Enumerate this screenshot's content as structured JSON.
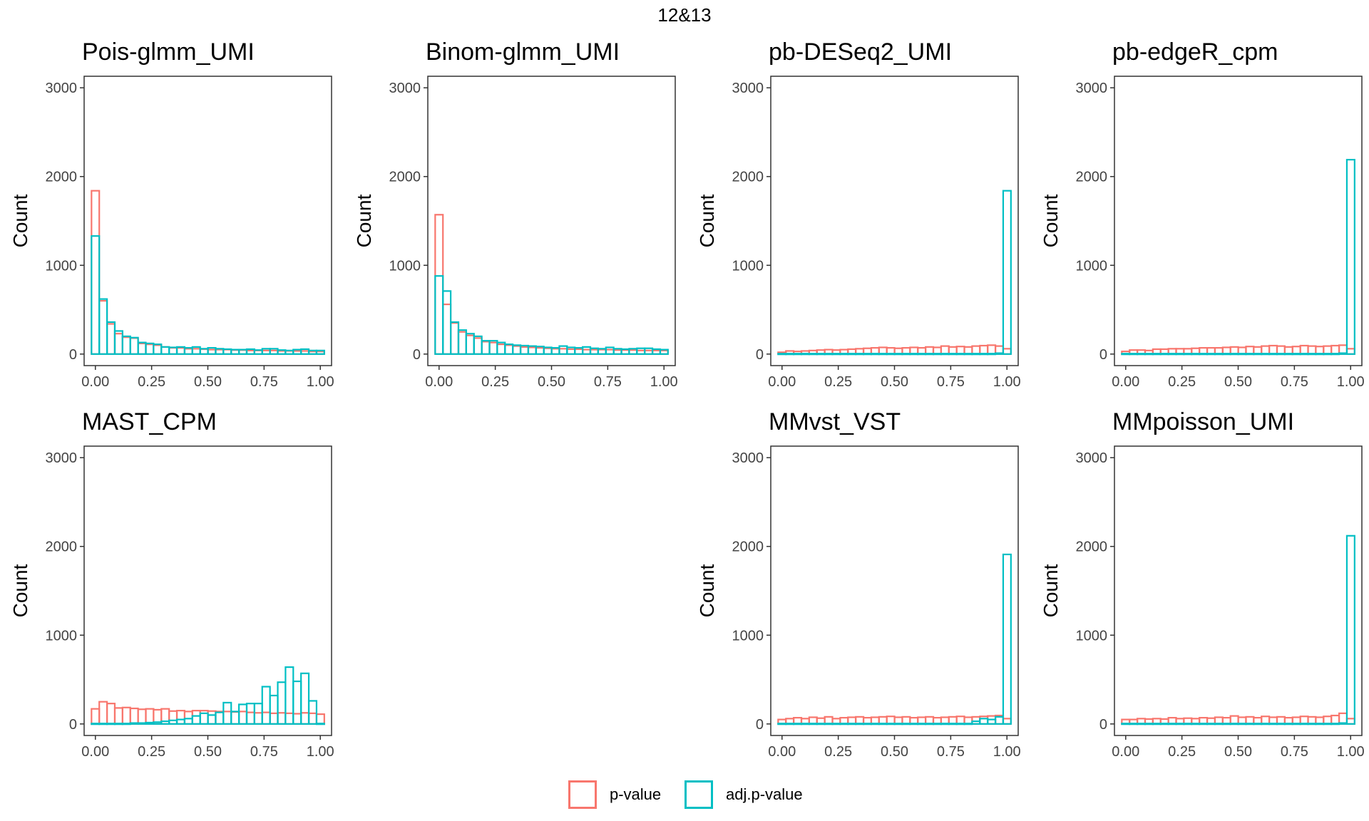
{
  "title": "12&13",
  "colors": {
    "p": "#F8766D",
    "adj": "#00BFC4",
    "ref": "#bbbbbb"
  },
  "legend": [
    {
      "label": "p-value",
      "color": "#F8766D"
    },
    {
      "label": "adj.p-value",
      "color": "#00BFC4"
    }
  ],
  "chart_data": [
    {
      "type": "bar",
      "title": "Pois-glmm_UMI",
      "ylabel": "Count",
      "xlim": [
        -0.05,
        1.05
      ],
      "ylim": [
        -130,
        3130
      ],
      "xticks": [
        "0.00",
        "0.25",
        "0.50",
        "0.75",
        "1.00"
      ],
      "yticks": [
        "0",
        "1000",
        "2000",
        "3000"
      ],
      "bin_width": 0.0345,
      "series": [
        {
          "name": "p-value",
          "values": [
            1840,
            600,
            340,
            230,
            190,
            180,
            120,
            110,
            100,
            80,
            70,
            70,
            60,
            60,
            55,
            50,
            50,
            50,
            45,
            45,
            40,
            40,
            40,
            40,
            35,
            35,
            35,
            35,
            30,
            30
          ]
        },
        {
          "name": "adj.p-value",
          "values": [
            1330,
            620,
            360,
            260,
            200,
            185,
            130,
            120,
            110,
            80,
            75,
            80,
            70,
            80,
            60,
            70,
            60,
            55,
            50,
            50,
            55,
            45,
            60,
            60,
            45,
            40,
            50,
            55,
            40,
            40
          ]
        }
      ]
    },
    {
      "type": "bar",
      "title": "Binom-glmm_UMI",
      "ylabel": "Count",
      "xlim": [
        -0.05,
        1.05
      ],
      "ylim": [
        -130,
        3130
      ],
      "xticks": [
        "0.00",
        "0.25",
        "0.50",
        "0.75",
        "1.00"
      ],
      "yticks": [
        "0",
        "1000",
        "2000",
        "3000"
      ],
      "bin_width": 0.0345,
      "series": [
        {
          "name": "p-value",
          "values": [
            1570,
            560,
            350,
            250,
            210,
            180,
            140,
            130,
            110,
            100,
            90,
            80,
            75,
            70,
            65,
            60,
            60,
            55,
            55,
            50,
            50,
            50,
            50,
            45,
            45,
            45,
            40,
            40,
            40,
            40
          ]
        },
        {
          "name": "adj.p-value",
          "values": [
            880,
            710,
            360,
            270,
            230,
            200,
            150,
            150,
            130,
            110,
            100,
            95,
            90,
            85,
            75,
            70,
            90,
            75,
            70,
            80,
            65,
            60,
            75,
            60,
            55,
            60,
            65,
            65,
            55,
            50
          ]
        }
      ]
    },
    {
      "type": "bar",
      "title": "pb-DESeq2_UMI",
      "ylabel": "Count",
      "xlim": [
        -0.05,
        1.05
      ],
      "ylim": [
        -130,
        3130
      ],
      "xticks": [
        "0.00",
        "0.25",
        "0.50",
        "0.75",
        "1.00"
      ],
      "yticks": [
        "0",
        "1000",
        "2000",
        "3000"
      ],
      "bin_width": 0.0345,
      "series": [
        {
          "name": "p-value",
          "values": [
            20,
            35,
            30,
            35,
            40,
            45,
            50,
            45,
            50,
            55,
            60,
            65,
            70,
            75,
            70,
            65,
            70,
            75,
            70,
            80,
            75,
            90,
            80,
            85,
            80,
            90,
            95,
            100,
            90,
            60
          ]
        },
        {
          "name": "adj.p-value",
          "values": [
            5,
            5,
            5,
            5,
            5,
            5,
            5,
            5,
            5,
            5,
            5,
            5,
            5,
            5,
            5,
            5,
            5,
            5,
            5,
            5,
            5,
            5,
            5,
            5,
            5,
            5,
            5,
            5,
            10,
            1840
          ]
        }
      ]
    },
    {
      "type": "bar",
      "title": "pb-edgeR_cpm",
      "ylabel": "Count",
      "xlim": [
        -0.05,
        1.05
      ],
      "ylim": [
        -130,
        3130
      ],
      "xticks": [
        "0.00",
        "0.25",
        "0.50",
        "0.75",
        "1.00"
      ],
      "yticks": [
        "0",
        "1000",
        "2000",
        "3000"
      ],
      "bin_width": 0.0345,
      "series": [
        {
          "name": "p-value",
          "values": [
            30,
            45,
            45,
            40,
            55,
            55,
            60,
            60,
            60,
            65,
            70,
            70,
            70,
            75,
            80,
            75,
            85,
            80,
            90,
            95,
            90,
            80,
            85,
            95,
            90,
            85,
            90,
            95,
            100,
            60
          ]
        },
        {
          "name": "adj.p-value",
          "values": [
            5,
            5,
            5,
            5,
            5,
            5,
            5,
            5,
            5,
            5,
            5,
            5,
            5,
            5,
            5,
            5,
            5,
            5,
            5,
            5,
            5,
            5,
            5,
            5,
            5,
            5,
            5,
            5,
            10,
            2190
          ]
        }
      ]
    },
    {
      "type": "bar",
      "title": "MAST_CPM",
      "ylabel": "Count",
      "xlim": [
        -0.05,
        1.05
      ],
      "ylim": [
        -130,
        3130
      ],
      "xticks": [
        "0.00",
        "0.25",
        "0.50",
        "0.75",
        "1.00"
      ],
      "yticks": [
        "0",
        "1000",
        "2000",
        "3000"
      ],
      "bin_width": 0.0345,
      "series": [
        {
          "name": "p-value",
          "values": [
            170,
            250,
            230,
            180,
            185,
            175,
            165,
            170,
            160,
            170,
            145,
            150,
            140,
            150,
            150,
            145,
            140,
            140,
            135,
            140,
            130,
            125,
            130,
            120,
            125,
            120,
            115,
            125,
            120,
            110
          ]
        },
        {
          "name": "adj.p-value",
          "values": [
            5,
            5,
            5,
            5,
            5,
            10,
            10,
            15,
            20,
            30,
            40,
            50,
            60,
            90,
            120,
            100,
            130,
            240,
            140,
            220,
            230,
            230,
            420,
            320,
            470,
            640,
            480,
            570,
            260,
            5
          ]
        }
      ]
    },
    {
      "type": "bar",
      "title": "MMvst_VST",
      "ylabel": "Count",
      "xlim": [
        -0.05,
        1.05
      ],
      "ylim": [
        -130,
        3130
      ],
      "xticks": [
        "0.00",
        "0.25",
        "0.50",
        "0.75",
        "1.00"
      ],
      "yticks": [
        "0",
        "1000",
        "2000",
        "3000"
      ],
      "bin_width": 0.0345,
      "series": [
        {
          "name": "p-value",
          "values": [
            50,
            60,
            70,
            60,
            75,
            65,
            80,
            60,
            70,
            75,
            80,
            70,
            75,
            80,
            85,
            75,
            80,
            70,
            75,
            80,
            70,
            75,
            80,
            85,
            75,
            80,
            85,
            90,
            95,
            60
          ]
        },
        {
          "name": "adj.p-value",
          "values": [
            5,
            5,
            5,
            5,
            5,
            5,
            5,
            5,
            5,
            5,
            5,
            5,
            5,
            5,
            5,
            5,
            5,
            5,
            5,
            5,
            5,
            5,
            5,
            5,
            5,
            30,
            60,
            50,
            80,
            1910
          ]
        }
      ]
    },
    {
      "type": "bar",
      "title": "MMpoisson_UMI",
      "ylabel": "Count",
      "xlim": [
        -0.05,
        1.05
      ],
      "ylim": [
        -130,
        3130
      ],
      "xticks": [
        "0.00",
        "0.25",
        "0.50",
        "0.75",
        "1.00"
      ],
      "yticks": [
        "0",
        "1000",
        "2000",
        "3000"
      ],
      "bin_width": 0.0345,
      "series": [
        {
          "name": "p-value",
          "values": [
            50,
            50,
            60,
            55,
            60,
            55,
            70,
            60,
            65,
            60,
            70,
            65,
            75,
            70,
            90,
            75,
            80,
            70,
            85,
            75,
            80,
            70,
            75,
            85,
            80,
            75,
            85,
            95,
            120,
            60
          ]
        },
        {
          "name": "adj.p-value",
          "values": [
            5,
            5,
            5,
            5,
            5,
            5,
            5,
            5,
            5,
            5,
            5,
            5,
            5,
            5,
            5,
            5,
            5,
            5,
            5,
            5,
            5,
            5,
            5,
            5,
            5,
            5,
            5,
            5,
            10,
            2120
          ]
        }
      ]
    }
  ]
}
